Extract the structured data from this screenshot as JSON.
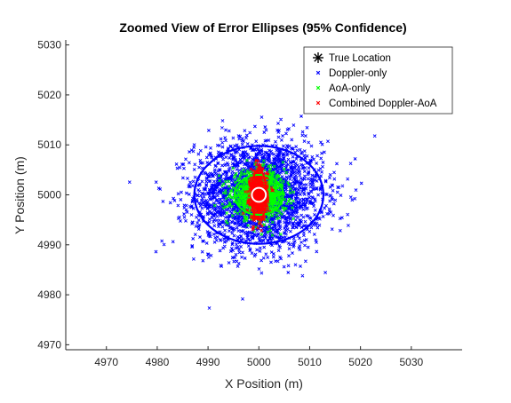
{
  "chart_data": {
    "type": "scatter",
    "title": "Zoomed View of Error Ellipses (95% Confidence)",
    "xlabel": "X Position (m)",
    "ylabel": "Y Position (m)",
    "xlim": [
      4962,
      5040
    ],
    "ylim": [
      4969,
      5031
    ],
    "xticks": [
      4970,
      4980,
      4990,
      5000,
      5010,
      5020,
      5030
    ],
    "yticks": [
      4970,
      4980,
      4990,
      5000,
      5010,
      5020,
      5030
    ],
    "grid": false,
    "legend_position": "top-right",
    "true_location": {
      "name": "True Location",
      "x": 5000,
      "y": 5000,
      "color": "#000000",
      "marker": "asterisk"
    },
    "series": [
      {
        "name": "Doppler-only",
        "color": "#0000ff",
        "marker": "x",
        "center": [
          5000,
          5000
        ],
        "std": [
          6.3,
          5.4
        ],
        "count": 2600,
        "ellipse": {
          "semi_axes": [
            12.7,
            9.8
          ],
          "linewidth": 2.2
        }
      },
      {
        "name": "AoA-only",
        "color": "#00ff00",
        "marker": "x",
        "center": [
          5000,
          5000
        ],
        "std": [
          2.6,
          2.3
        ],
        "count": 900,
        "ellipse": {
          "semi_axes": [
            4.8,
            4.0
          ],
          "linewidth": 2
        }
      },
      {
        "name": "Combined Doppler-AoA",
        "color": "#ff0000",
        "marker": "x",
        "center": [
          5000,
          5000
        ],
        "std": [
          0.85,
          2.5
        ],
        "count": 600,
        "ellipse": {
          "semi_axes": [
            1.5,
            5.0
          ],
          "linewidth": 2
        }
      }
    ],
    "circle_marker": {
      "x": 5000,
      "y": 5000,
      "radius": 1.2,
      "color": "#ffffff"
    }
  }
}
